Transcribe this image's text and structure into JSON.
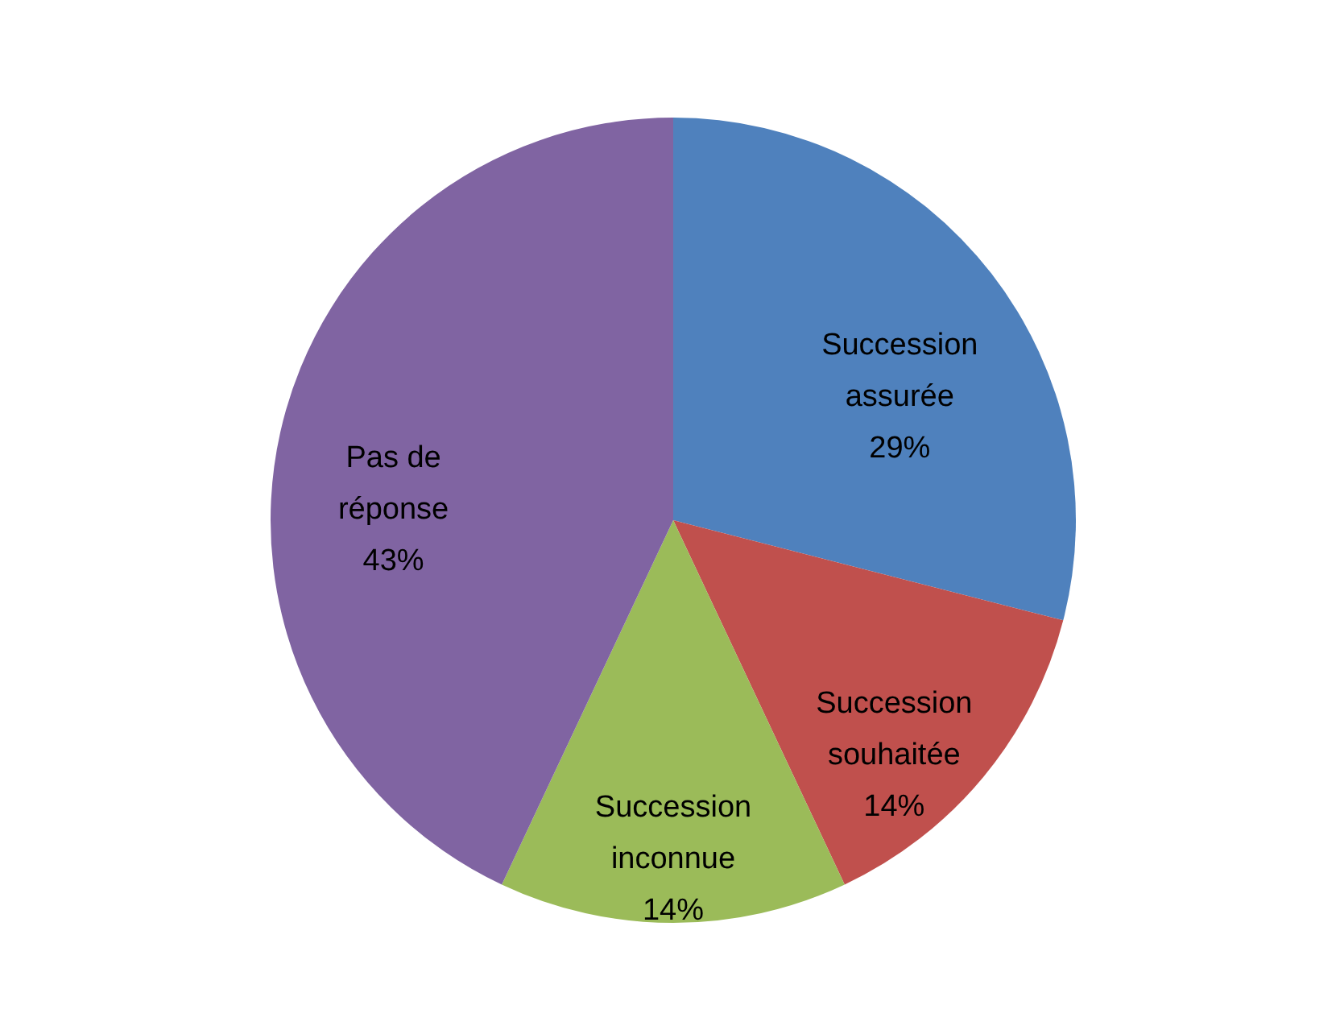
{
  "chart_data": {
    "type": "pie",
    "categories": [
      "Succession assurée",
      "Succession souhaitée",
      "Succession inconnue",
      "Pas de réponse"
    ],
    "values": [
      29,
      14,
      14,
      43
    ],
    "colors": [
      "#4f81bd",
      "#c0504d",
      "#9bbb59",
      "#8064a2"
    ],
    "value_labels": [
      "29%",
      "14%",
      "14%",
      "43%"
    ]
  }
}
